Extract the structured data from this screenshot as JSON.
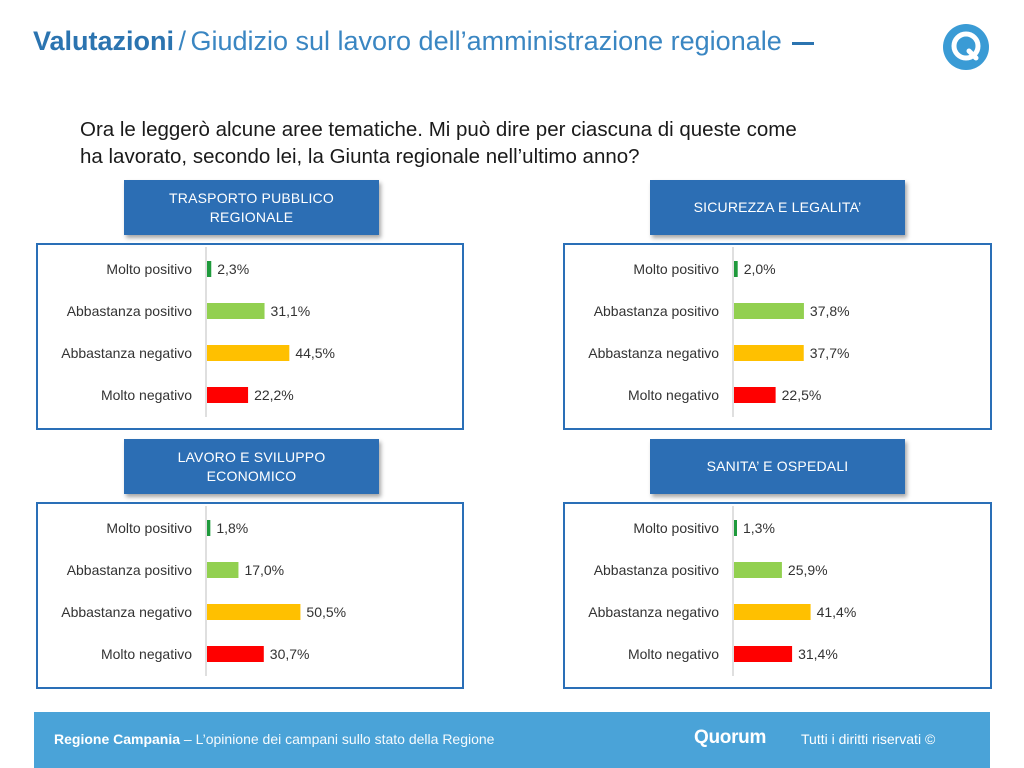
{
  "header": {
    "title_bold": "Valutazioni",
    "title_sep": "/",
    "title_light": "Giudizio sul lavoro dell’amministrazione regionale"
  },
  "logo": {
    "icon": "quorum-q-logo-icon",
    "color": "#3a9bd5"
  },
  "question": {
    "line1": "Ora le leggerò alcune aree tematiche. Mi può dire per ciascuna di queste come",
    "line2": "ha lavorato, secondo lei, la Giunta regionale nell’ultimo anno?"
  },
  "colors": {
    "molto_positivo": "#1f9a3c",
    "abbastanza_positivo": "#92d050",
    "abbastanza_negativo": "#ffc000",
    "molto_negativo": "#ff0000",
    "panel_border": "#2a6fb7",
    "label_bg": "#2c6eb4"
  },
  "chart_data": [
    {
      "type": "bar",
      "title_lines": [
        "TRASPORTO PUBBLICO",
        "REGIONALE"
      ],
      "categories": [
        "Molto positivo",
        "Abbastanza positivo",
        "Abbastanza negativo",
        "Molto negativo"
      ],
      "values": [
        2.3,
        31.1,
        44.5,
        22.2
      ],
      "value_labels": [
        "2,3%",
        "31,1%",
        "44,5%",
        "22,2%"
      ],
      "xlim": [
        0,
        100
      ]
    },
    {
      "type": "bar",
      "title_lines": [
        "SICUREZZA E LEGALITA’"
      ],
      "categories": [
        "Molto positivo",
        "Abbastanza positivo",
        "Abbastanza negativo",
        "Molto negativo"
      ],
      "values": [
        2.0,
        37.8,
        37.7,
        22.5
      ],
      "value_labels": [
        "2,0%",
        "37,8%",
        "37,7%",
        "22,5%"
      ],
      "xlim": [
        0,
        100
      ]
    },
    {
      "type": "bar",
      "title_lines": [
        "LAVORO E SVILUPPO",
        "ECONOMICO"
      ],
      "categories": [
        "Molto positivo",
        "Abbastanza positivo",
        "Abbastanza negativo",
        "Molto negativo"
      ],
      "values": [
        1.8,
        17.0,
        50.5,
        30.7
      ],
      "value_labels": [
        "1,8%",
        "17,0%",
        "50,5%",
        "30,7%"
      ],
      "xlim": [
        0,
        100
      ]
    },
    {
      "type": "bar",
      "title_lines": [
        "SANITA’ E OSPEDALI"
      ],
      "categories": [
        "Molto positivo",
        "Abbastanza positivo",
        "Abbastanza negativo",
        "Molto negativo"
      ],
      "values": [
        1.3,
        25.9,
        41.4,
        31.4
      ],
      "value_labels": [
        "1,3%",
        "25,9%",
        "41,4%",
        "31,4%"
      ],
      "xlim": [
        0,
        100
      ]
    }
  ],
  "footer": {
    "region": "Regione Campania",
    "subtitle": "– L’opinione dei campani sullo stato della Regione",
    "brand": "Quorum",
    "rights": "Tutti i diritti riservati ©"
  }
}
